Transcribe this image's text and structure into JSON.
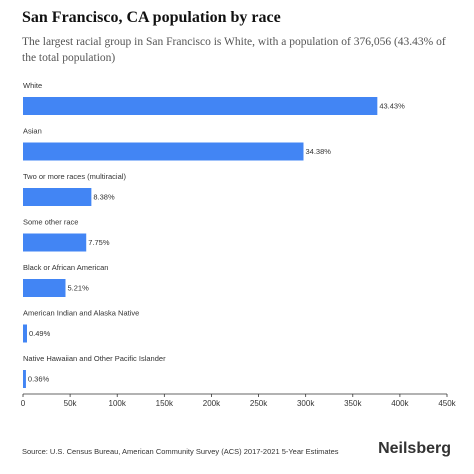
{
  "chart_data": {
    "type": "hbar",
    "title": "San Francisco, CA population by race",
    "subtitle": "The largest racial group in San Francisco is White, with a population of 376,056 (43.43% of the total population)",
    "categories": [
      "White",
      "Asian",
      "Two or more races (multiracial)",
      "Some other race",
      "Black or African American",
      "American Indian and Alaska Native",
      "Native Hawaiian and Other Pacific Islander"
    ],
    "values": [
      376056,
      297693,
      72562,
      67106,
      45113,
      4243,
      3117
    ],
    "value_labels": [
      "43.43%",
      "34.38%",
      "8.38%",
      "7.75%",
      "5.21%",
      "0.49%",
      "0.36%"
    ],
    "color": "#4285f4",
    "xlim": [
      0,
      450000
    ],
    "xticks": [
      0,
      {
        "value": 50000,
        "label": "50k"
      },
      {
        "value": 100000,
        "label": "100k"
      },
      {
        "value": 150000,
        "label": "150k"
      },
      {
        "value": 200000,
        "label": "200k"
      },
      {
        "value": 250000,
        "label": "250k"
      },
      {
        "value": 300000,
        "label": "300k"
      },
      {
        "value": 350000,
        "label": "350k"
      },
      {
        "value": 400000,
        "label": "400k"
      },
      {
        "value": 450000,
        "label": "450k"
      }
    ],
    "source": "Source: U.S. Census Bureau, American Community Survey (ACS) 2017-2021 5-Year Estimates",
    "brand": "Neilsberg"
  }
}
